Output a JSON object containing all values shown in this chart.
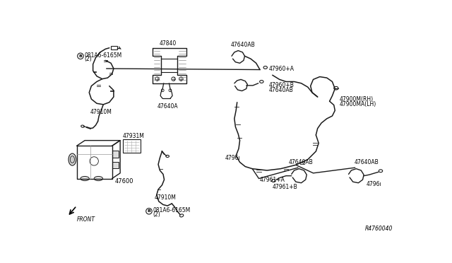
{
  "bg_color": "#ffffff",
  "line_color": "#1a1a1a",
  "text_color": "#000000",
  "fig_width": 6.4,
  "fig_height": 3.72,
  "dpi": 100,
  "ref_code": "R4760040",
  "labels": {
    "part_B1": "B",
    "part1a": "081A6-6165M",
    "part1b": "(2)",
    "part2": "47840",
    "part3": "47640A",
    "part4": "47910M",
    "part5": "47931M",
    "part6": "47600",
    "front_label": "FRONT",
    "part7": "47640AB",
    "part8": "47960+A",
    "part9": "47960+B",
    "part10": "47640AB",
    "part11": "4796ı",
    "part12": "47900M(RH)",
    "part13": "47900MA(LH)",
    "part14": "47640AB",
    "part15": "47640AB",
    "part16": "47961+B",
    "part17": "47961+A",
    "part18": "4796ı",
    "part19": "47910M",
    "part_B2": "B",
    "part20a": "081A6-6165M",
    "part20b": "(2)"
  }
}
